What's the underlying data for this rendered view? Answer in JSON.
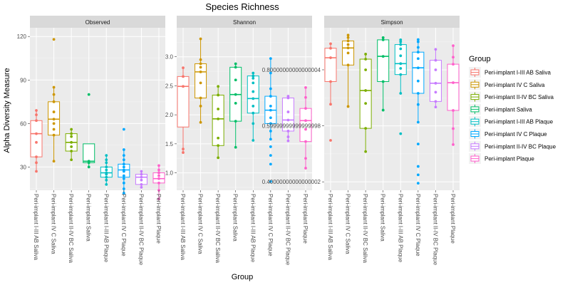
{
  "chart_data": {
    "type": "box",
    "title": "Species Richness",
    "xlabel": "Group",
    "ylabel": "Alpha Diversity Measure",
    "categories": [
      "Peri-implant I-III AB Saliva",
      "Peri-implant IV C Saliva",
      "Peri-implant II-IV BC Saliva",
      "Peri-implant Saliva",
      "Peri-implant I-III AB Plaque",
      "Peri-implant IV C Plaque",
      "Peri-implant II-IV BC Plaque",
      "Peri-implant Plaque"
    ],
    "colors": [
      "#F8766D",
      "#CD9600",
      "#7CAE00",
      "#00BE67",
      "#00BFC4",
      "#00A9FF",
      "#C77CFF",
      "#FF61CC"
    ],
    "legend": {
      "title": "Group",
      "position": "right"
    },
    "grid": true,
    "panels": [
      {
        "label": "Observed",
        "ylim": [
          14,
          126
        ],
        "yticks": [
          30,
          60,
          90,
          120
        ],
        "boxes": [
          {
            "q1": 37,
            "median": 53,
            "q3": 62,
            "lo": 27,
            "hi": 69,
            "points": [
              27,
              33,
              37,
              47,
              53,
              62,
              66,
              69
            ]
          },
          {
            "q1": 52,
            "median": 63,
            "q3": 75,
            "lo": 34,
            "hi": 85,
            "points": [
              34,
              52,
              56,
              60,
              63,
              68,
              75,
              80,
              85,
              118
            ]
          },
          {
            "q1": 41,
            "median": 47,
            "q3": 53,
            "lo": 35,
            "hi": 56,
            "points": [
              35,
              41,
              44,
              47,
              51,
              53,
              56
            ]
          },
          {
            "q1": 33,
            "median": 34,
            "q3": 46,
            "lo": 30,
            "hi": 46,
            "points": [
              30,
              33,
              34,
              80
            ]
          },
          {
            "q1": 23,
            "median": 26,
            "q3": 30,
            "lo": 18,
            "hi": 38,
            "points": [
              18,
              21,
              23,
              25,
              26,
              28,
              30,
              33,
              35,
              38
            ]
          },
          {
            "q1": 23,
            "median": 28,
            "q3": 32,
            "lo": 12,
            "hi": 42,
            "points": [
              12,
              15,
              19,
              22,
              24,
              27,
              28,
              30,
              32,
              35,
              38,
              42,
              56
            ]
          },
          {
            "q1": 18,
            "median": 23,
            "q3": 25,
            "lo": 16,
            "hi": 27,
            "points": [
              16,
              18,
              21,
              23,
              25,
              27
            ]
          },
          {
            "q1": 19,
            "median": 22,
            "q3": 26,
            "lo": 8,
            "hi": 31,
            "points": [
              8,
              14,
              19,
              22,
              24,
              26,
              28,
              31
            ]
          }
        ]
      },
      {
        "label": "Shannon",
        "ylim": [
          0.7,
          3.5
        ],
        "yticks": [
          1.0,
          1.5,
          2.0,
          2.5,
          3.0
        ],
        "boxes": [
          {
            "q1": 1.79,
            "median": 2.49,
            "q3": 2.66,
            "lo": 1.35,
            "hi": 2.81,
            "points": [
              1.35,
              1.41,
              2.49,
              2.66,
              2.81
            ]
          },
          {
            "q1": 2.29,
            "median": 2.74,
            "q3": 2.88,
            "lo": 1.87,
            "hi": 3.31,
            "points": [
              1.87,
              2.15,
              2.29,
              2.55,
              2.74,
              2.82,
              2.88,
              2.95,
              3.31
            ]
          },
          {
            "q1": 1.47,
            "median": 1.93,
            "q3": 2.34,
            "lo": 1.26,
            "hi": 2.49,
            "points": [
              1.26,
              1.47,
              1.6,
              1.93,
              2.1,
              2.34,
              2.49
            ]
          },
          {
            "q1": 1.89,
            "median": 2.35,
            "q3": 2.82,
            "lo": 1.44,
            "hi": 2.88,
            "points": [
              1.44,
              1.89,
              2.2,
              2.35,
              2.6,
              2.82,
              2.88
            ]
          },
          {
            "q1": 2.03,
            "median": 2.28,
            "q3": 2.67,
            "lo": 1.56,
            "hi": 2.72,
            "points": [
              1.56,
              1.85,
              2.03,
              2.15,
              2.28,
              2.4,
              2.55,
              2.63,
              2.67,
              2.72
            ]
          },
          {
            "q1": 1.85,
            "median": 2.08,
            "q3": 2.32,
            "lo": 1.58,
            "hi": 2.97,
            "points": [
              0.85,
              1.15,
              1.3,
              1.45,
              1.58,
              1.72,
              1.85,
              1.95,
              2.08,
              2.15,
              2.32,
              2.45,
              2.72,
              2.97
            ]
          },
          {
            "q1": 1.72,
            "median": 1.91,
            "q3": 2.29,
            "lo": 1.55,
            "hi": 2.32,
            "points": [
              1.55,
              1.62,
              1.72,
              1.91,
              2.05,
              2.29,
              2.32
            ]
          },
          {
            "q1": 1.54,
            "median": 1.9,
            "q3": 2.11,
            "lo": 1.08,
            "hi": 2.47,
            "points": [
              1.08,
              1.25,
              1.54,
              1.75,
              1.9,
              2.11,
              2.3,
              2.47
            ]
          }
        ]
      },
      {
        "label": "Simpson",
        "ylim": [
          0.37,
          0.95
        ],
        "yticks": [
          0.4,
          0.6,
          0.8
        ],
        "boxes": [
          {
            "q1": 0.758,
            "median": 0.843,
            "q3": 0.877,
            "lo": 0.677,
            "hi": 0.893,
            "points": [
              0.548,
              0.677,
              0.758,
              0.843,
              0.877,
              0.893
            ]
          },
          {
            "q1": 0.817,
            "median": 0.878,
            "q3": 0.903,
            "lo": 0.669,
            "hi": 0.924,
            "points": [
              0.669,
              0.817,
              0.86,
              0.878,
              0.89,
              0.903,
              0.915,
              0.924
            ]
          },
          {
            "q1": 0.591,
            "median": 0.726,
            "q3": 0.838,
            "lo": 0.508,
            "hi": 0.856,
            "points": [
              0.508,
              0.591,
              0.68,
              0.726,
              0.8,
              0.838,
              0.856
            ]
          },
          {
            "q1": 0.758,
            "median": 0.848,
            "q3": 0.907,
            "lo": 0.656,
            "hi": 0.915,
            "points": [
              0.656,
              0.758,
              0.848,
              0.907,
              0.915
            ]
          },
          {
            "q1": 0.783,
            "median": 0.822,
            "q3": 0.89,
            "lo": 0.716,
            "hi": 0.907,
            "points": [
              0.572,
              0.716,
              0.783,
              0.805,
              0.822,
              0.85,
              0.875,
              0.89,
              0.9,
              0.907
            ]
          },
          {
            "q1": 0.716,
            "median": 0.807,
            "q3": 0.863,
            "lo": 0.613,
            "hi": 0.908,
            "points": [
              0.395,
              0.425,
              0.455,
              0.535,
              0.613,
              0.676,
              0.716,
              0.76,
              0.807,
              0.84,
              0.863,
              0.88,
              0.9,
              0.908
            ]
          },
          {
            "q1": 0.687,
            "median": 0.752,
            "q3": 0.834,
            "lo": 0.667,
            "hi": 0.873,
            "points": [
              0.667,
              0.687,
              0.72,
              0.752,
              0.8,
              0.834,
              0.873
            ]
          },
          {
            "q1": 0.655,
            "median": 0.754,
            "q3": 0.82,
            "lo": 0.533,
            "hi": 0.886,
            "points": [
              0.533,
              0.59,
              0.655,
              0.754,
              0.82,
              0.845,
              0.886
            ]
          }
        ]
      }
    ]
  }
}
